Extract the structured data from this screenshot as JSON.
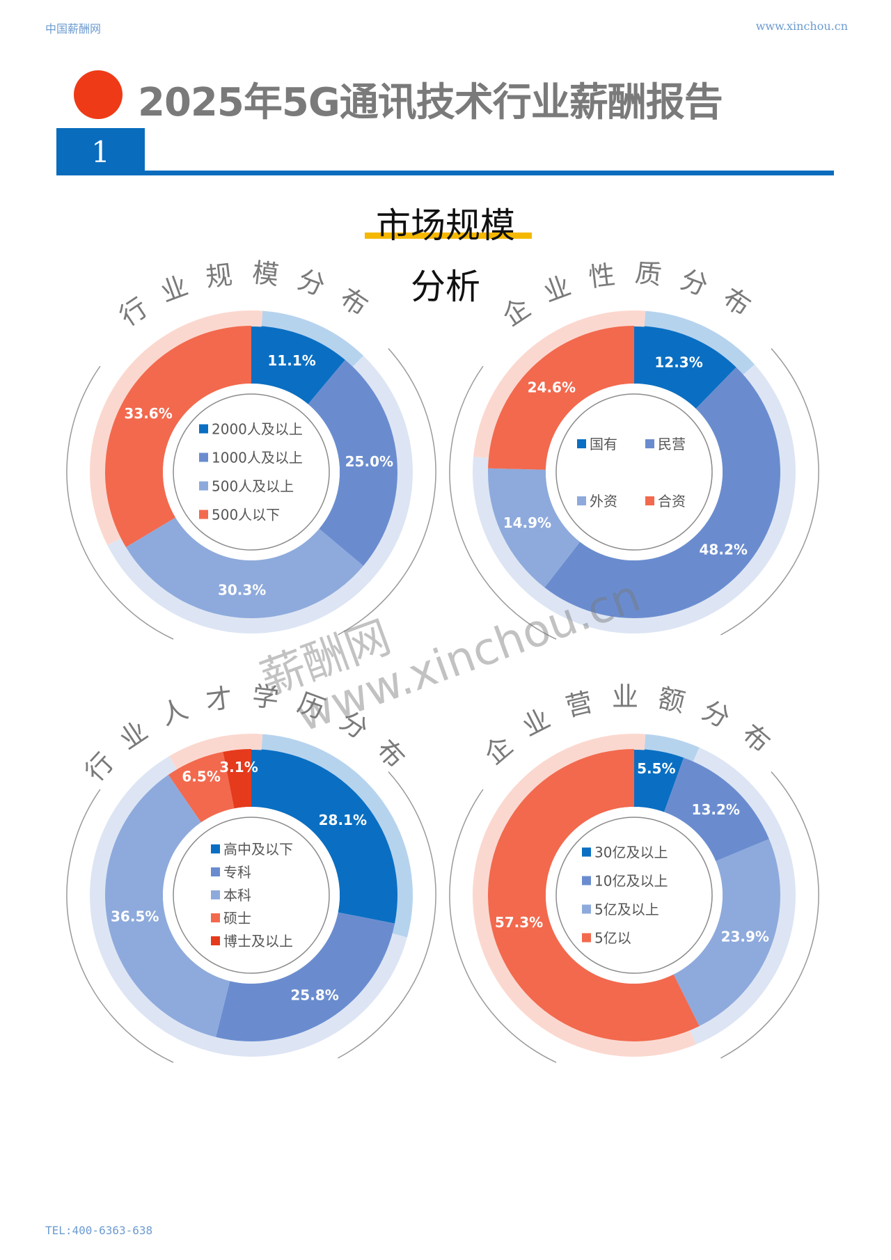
{
  "header": {
    "site_name": "中国薪酬网",
    "site_url": "www.xinchou.cn"
  },
  "title": "2025年5G通讯技术行业薪酬报告",
  "section": {
    "number": "1",
    "heading_line1": "市场规模",
    "heading_line2": "分析"
  },
  "footer": {
    "tel": "TEL:400-6363-638"
  },
  "watermark": {
    "line1": "薪酬网",
    "line2": "www.xinchou.cn"
  },
  "colors": {
    "dark_blue": "#0a6fc2",
    "mid_blue": "#6a8ccf",
    "light_blue": "#8eaadc",
    "orange_red": "#f2694e",
    "red": "#e53a1c",
    "accent_yellow": "#f5b800"
  },
  "chart_data": [
    {
      "type": "pie",
      "title": "行业规模分布",
      "legend_layout": "center-list",
      "categories": [
        "2000人及以上",
        "1000人及以上",
        "500人及以上",
        "500人以下"
      ],
      "values": [
        11.1,
        25.0,
        30.3,
        33.6
      ],
      "labels": [
        "11.1%",
        "25.0%",
        "30.3%",
        "33.6%"
      ],
      "colors": [
        "#0a6fc2",
        "#6a8ccf",
        "#8eaadc",
        "#f2694e"
      ]
    },
    {
      "type": "pie",
      "title": "企业性质分布",
      "legend_layout": "center-grid",
      "categories": [
        "国有",
        "民营",
        "外资",
        "合资"
      ],
      "values": [
        12.3,
        48.2,
        14.9,
        24.6
      ],
      "labels": [
        "12.3%",
        "48.2%",
        "14.9%",
        "24.6%"
      ],
      "colors": [
        "#0a6fc2",
        "#6a8ccf",
        "#8eaadc",
        "#f2694e"
      ]
    },
    {
      "type": "pie",
      "title": "行业人才学历分布",
      "legend_layout": "center-list",
      "categories": [
        "高中及以下",
        "专科",
        "本科",
        "硕士",
        "博士及以上"
      ],
      "values": [
        28.1,
        25.8,
        36.5,
        6.5,
        3.1
      ],
      "labels": [
        "28.1%",
        "25.8%",
        "36.5%",
        "6.5%",
        "3.1%"
      ],
      "colors": [
        "#0a6fc2",
        "#6a8ccf",
        "#8eaadc",
        "#f2694e",
        "#e53a1c"
      ]
    },
    {
      "type": "pie",
      "title": "企业营业额分布",
      "legend_layout": "center-list",
      "categories": [
        "30亿及以上",
        "10亿及以上",
        "5亿及以上",
        "5亿以"
      ],
      "values": [
        5.5,
        13.2,
        23.9,
        57.3
      ],
      "labels": [
        "5.5%",
        "13.2%",
        "23.9%",
        "57.3%"
      ],
      "colors": [
        "#0a6fc2",
        "#6a8ccf",
        "#8eaadc",
        "#f2694e"
      ]
    }
  ]
}
